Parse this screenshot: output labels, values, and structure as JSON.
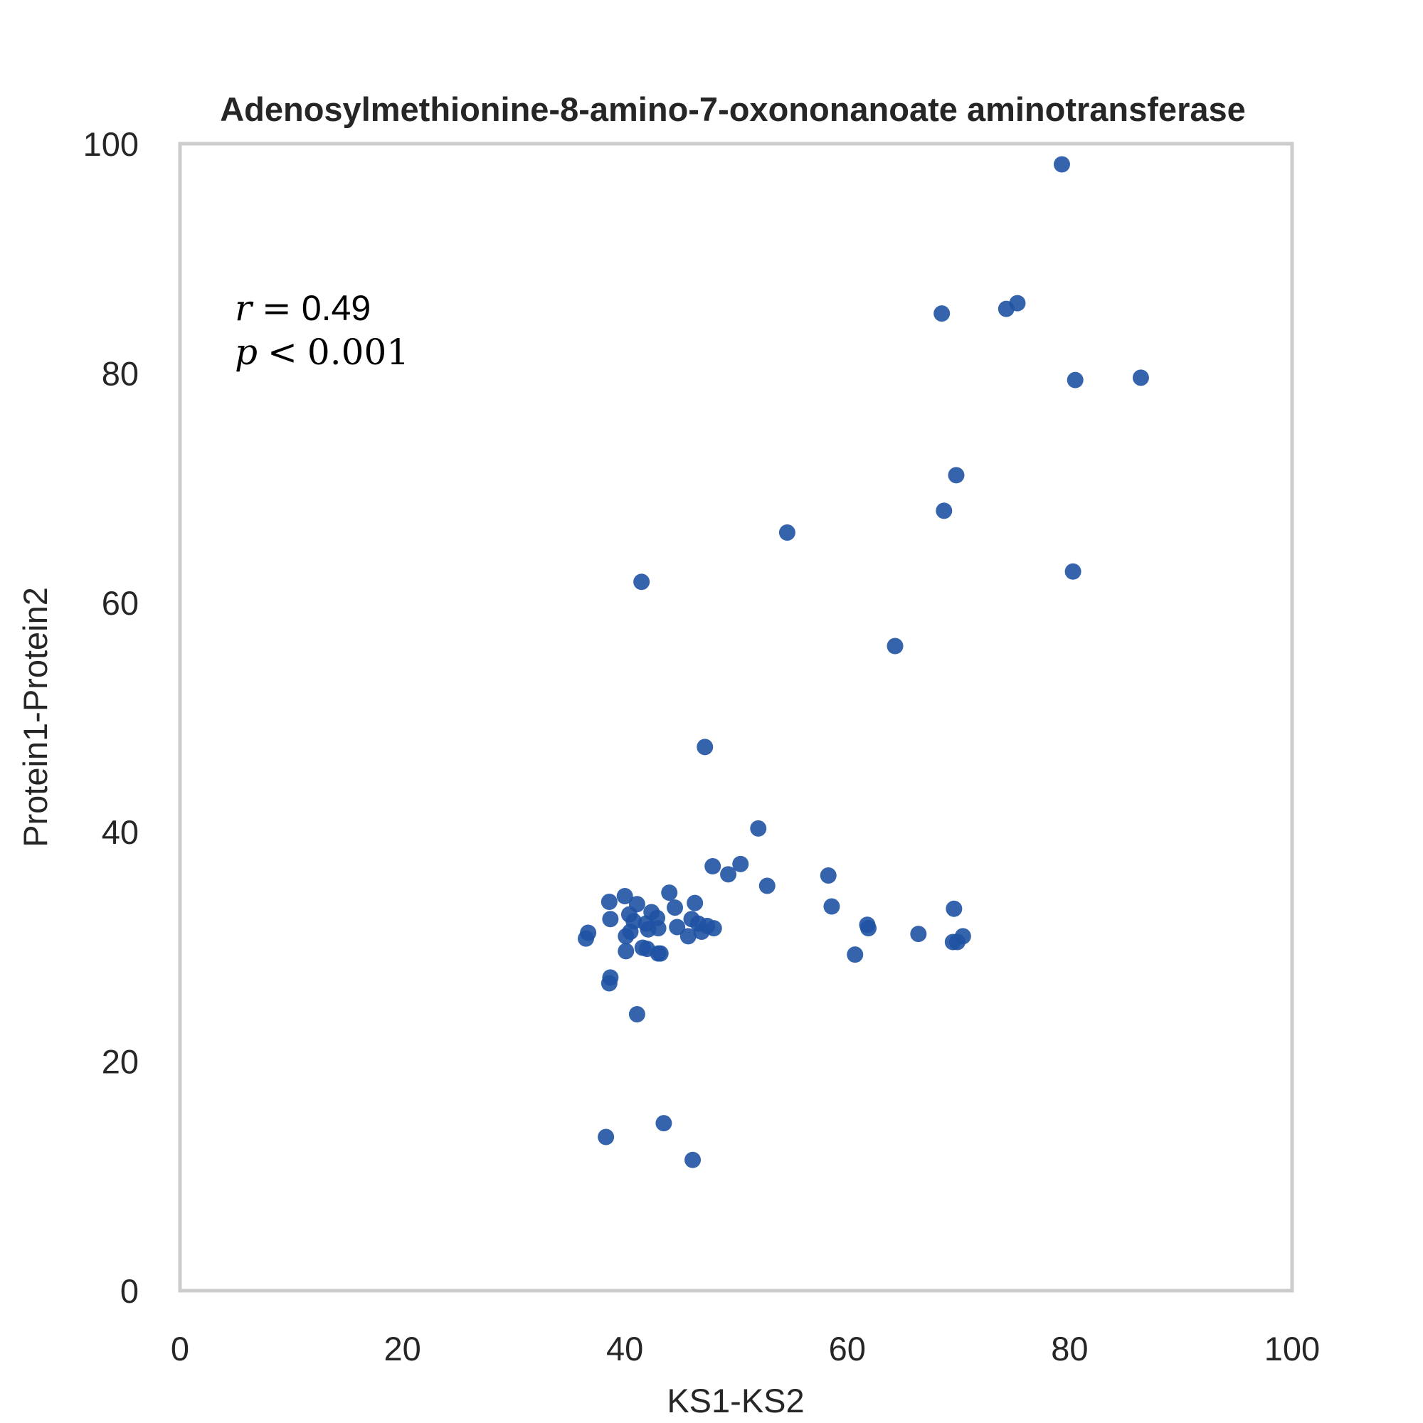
{
  "chart_data": {
    "type": "scatter",
    "title": "Adenosylmethionine-8-amino-7-oxononanoate aminotransferase",
    "xlabel": "KS1-KS2",
    "ylabel": "Protein1-Protein2",
    "xlim": [
      0,
      100
    ],
    "ylim": [
      0,
      100
    ],
    "xticks": [
      "0",
      "20",
      "40",
      "60",
      "80",
      "100"
    ],
    "yticks": [
      "0",
      "20",
      "40",
      "60",
      "80",
      "100"
    ],
    "grid": false,
    "marker_color": "#1f52a3",
    "annotation": {
      "r_label": "r",
      "r_sign": "=",
      "r_value": "0.49",
      "p_label": "p",
      "p_sign": "<",
      "p_value": "0.001"
    },
    "points": [
      [
        79.3,
        98.2
      ],
      [
        68.5,
        85.2
      ],
      [
        74.3,
        85.6
      ],
      [
        75.3,
        86.1
      ],
      [
        80.5,
        79.4
      ],
      [
        86.4,
        79.6
      ],
      [
        69.8,
        71.1
      ],
      [
        68.7,
        68.0
      ],
      [
        54.6,
        66.1
      ],
      [
        41.5,
        61.8
      ],
      [
        80.3,
        62.7
      ],
      [
        64.3,
        56.2
      ],
      [
        47.2,
        47.4
      ],
      [
        52.0,
        40.3
      ],
      [
        47.9,
        37.0
      ],
      [
        50.4,
        37.2
      ],
      [
        49.3,
        36.3
      ],
      [
        52.8,
        35.3
      ],
      [
        58.3,
        36.2
      ],
      [
        58.6,
        33.5
      ],
      [
        69.6,
        33.3
      ],
      [
        40.0,
        34.4
      ],
      [
        38.6,
        33.9
      ],
      [
        41.1,
        33.7
      ],
      [
        44.0,
        34.7
      ],
      [
        46.3,
        33.8
      ],
      [
        44.5,
        33.4
      ],
      [
        38.7,
        32.4
      ],
      [
        40.4,
        32.8
      ],
      [
        40.8,
        32.2
      ],
      [
        42.4,
        33.0
      ],
      [
        42.9,
        32.5
      ],
      [
        41.9,
        32.0
      ],
      [
        46.0,
        32.4
      ],
      [
        46.6,
        32.0
      ],
      [
        47.4,
        31.8
      ],
      [
        48.0,
        31.6
      ],
      [
        44.7,
        31.7
      ],
      [
        40.5,
        31.3
      ],
      [
        42.1,
        31.5
      ],
      [
        43.0,
        31.6
      ],
      [
        36.7,
        31.2
      ],
      [
        36.5,
        30.7
      ],
      [
        40.1,
        30.9
      ],
      [
        45.7,
        30.9
      ],
      [
        46.9,
        31.3
      ],
      [
        61.8,
        31.9
      ],
      [
        61.9,
        31.6
      ],
      [
        66.4,
        31.1
      ],
      [
        70.4,
        30.9
      ],
      [
        69.5,
        30.4
      ],
      [
        69.9,
        30.4
      ],
      [
        40.1,
        29.6
      ],
      [
        41.6,
        29.9
      ],
      [
        42.0,
        29.8
      ],
      [
        43.0,
        29.4
      ],
      [
        43.2,
        29.4
      ],
      [
        60.7,
        29.3
      ],
      [
        38.7,
        27.3
      ],
      [
        38.6,
        26.8
      ],
      [
        41.1,
        24.1
      ],
      [
        43.5,
        14.6
      ],
      [
        38.3,
        13.4
      ],
      [
        46.1,
        11.4
      ]
    ]
  }
}
